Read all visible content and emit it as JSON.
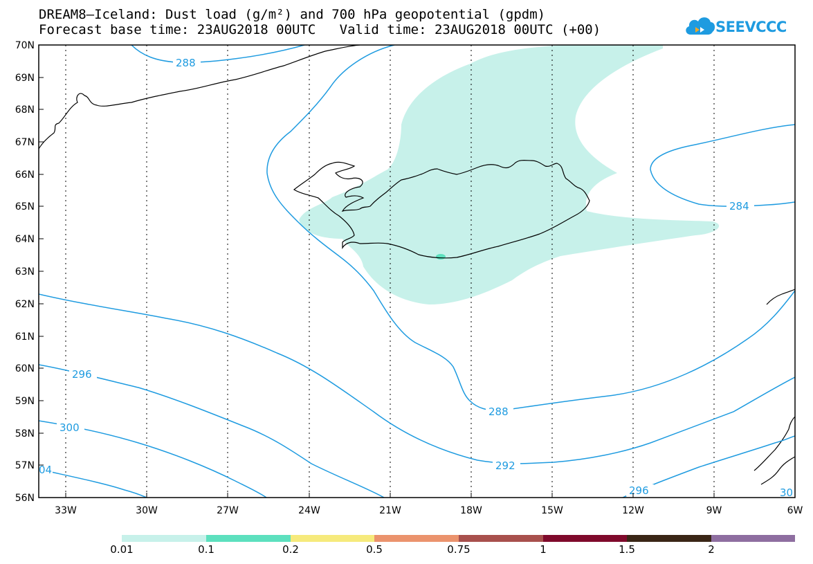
{
  "title_line1": "DREAM8–Iceland: Dust load (g/m²) and 700 hPa geopotential (gpdm)",
  "title_line2": "Forecast base time: 23AUG2018 00UTC   Valid time: 23AUG2018 00UTC (+00)",
  "logo_text": "SEEVCCC",
  "latitude_labels": [
    "70N",
    "69N",
    "68N",
    "67N",
    "66N",
    "65N",
    "64N",
    "63N",
    "62N",
    "61N",
    "60N",
    "59N",
    "58N",
    "57N",
    "56N"
  ],
  "longitude_labels": [
    "33W",
    "30W",
    "27W",
    "24W",
    "21W",
    "18W",
    "15W",
    "12W",
    "9W",
    "6W"
  ],
  "contour_labels": [
    "288",
    "284",
    "296",
    "300",
    "04",
    "288",
    "292",
    "296",
    "30"
  ],
  "colorbar": {
    "colors": [
      "#c7f1ea",
      "#5de0be",
      "#f6ea7c",
      "#eb936d",
      "#a8504d",
      "#7f0a2c",
      "#3a2616",
      "#8e6ea0"
    ],
    "labels": [
      "0.01",
      "0.1",
      "0.2",
      "0.5",
      "0.75",
      "1",
      "1.5",
      "2"
    ]
  },
  "colors": {
    "contour": "#1e9be0",
    "dust_light": "#c7f1ea",
    "dust_mid": "#5de0be"
  }
}
